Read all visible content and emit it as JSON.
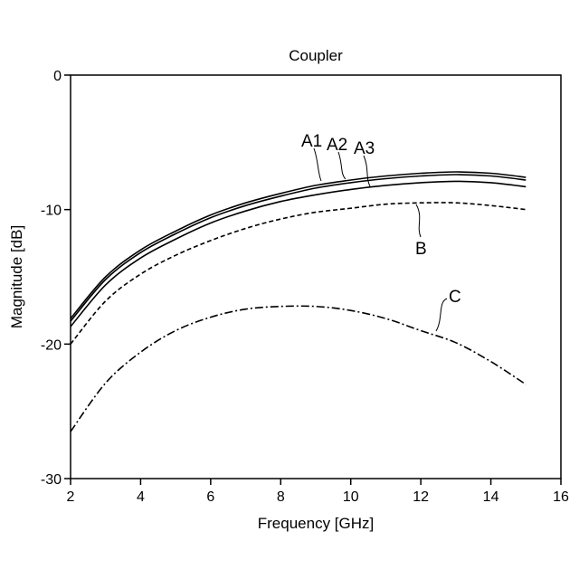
{
  "chart_data": {
    "type": "line",
    "title": "Coupler",
    "xlabel": "Frequency [GHz]",
    "ylabel": "Magnitude [dB]",
    "xlim": [
      2,
      16
    ],
    "ylim": [
      -30,
      0
    ],
    "xticks": [
      2,
      4,
      6,
      8,
      10,
      12,
      14,
      16
    ],
    "yticks": [
      0,
      -10,
      -20,
      -30
    ],
    "grid": false,
    "legend": "none",
    "series": [
      {
        "name": "A1",
        "style": "solid",
        "x": [
          2,
          3,
          4,
          5,
          6,
          7,
          8,
          9,
          10,
          11,
          12,
          13,
          14,
          15
        ],
        "y": [
          -18.1,
          -15.0,
          -13.0,
          -11.6,
          -10.4,
          -9.5,
          -8.8,
          -8.2,
          -7.8,
          -7.5,
          -7.3,
          -7.2,
          -7.3,
          -7.6
        ]
      },
      {
        "name": "A2",
        "style": "solid",
        "x": [
          2,
          3,
          4,
          5,
          6,
          7,
          8,
          9,
          10,
          11,
          12,
          13,
          14,
          15
        ],
        "y": [
          -18.3,
          -15.2,
          -13.2,
          -11.8,
          -10.6,
          -9.7,
          -9.0,
          -8.4,
          -8.0,
          -7.7,
          -7.5,
          -7.4,
          -7.5,
          -7.8
        ]
      },
      {
        "name": "A3",
        "style": "solid",
        "x": [
          2,
          3,
          4,
          5,
          6,
          7,
          8,
          9,
          10,
          11,
          12,
          13,
          14,
          15
        ],
        "y": [
          -18.7,
          -15.6,
          -13.6,
          -12.2,
          -11.0,
          -10.1,
          -9.4,
          -8.9,
          -8.5,
          -8.2,
          -8.0,
          -7.9,
          -8.0,
          -8.3
        ]
      },
      {
        "name": "B",
        "style": "dashed",
        "x": [
          2,
          3,
          4,
          5,
          6,
          7,
          8,
          9,
          10,
          11,
          12,
          13,
          14,
          15
        ],
        "y": [
          -20.0,
          -16.8,
          -14.8,
          -13.4,
          -12.3,
          -11.4,
          -10.7,
          -10.2,
          -9.9,
          -9.6,
          -9.5,
          -9.5,
          -9.7,
          -10.0
        ]
      },
      {
        "name": "C",
        "style": "dashdot",
        "x": [
          2,
          3,
          4,
          5,
          6,
          7,
          8,
          9,
          10,
          11,
          12,
          13,
          14,
          15
        ],
        "y": [
          -26.5,
          -22.9,
          -20.6,
          -19.0,
          -18.0,
          -17.4,
          -17.2,
          -17.2,
          -17.5,
          -18.1,
          -19.0,
          -19.9,
          -21.3,
          -23.0
        ]
      }
    ]
  }
}
